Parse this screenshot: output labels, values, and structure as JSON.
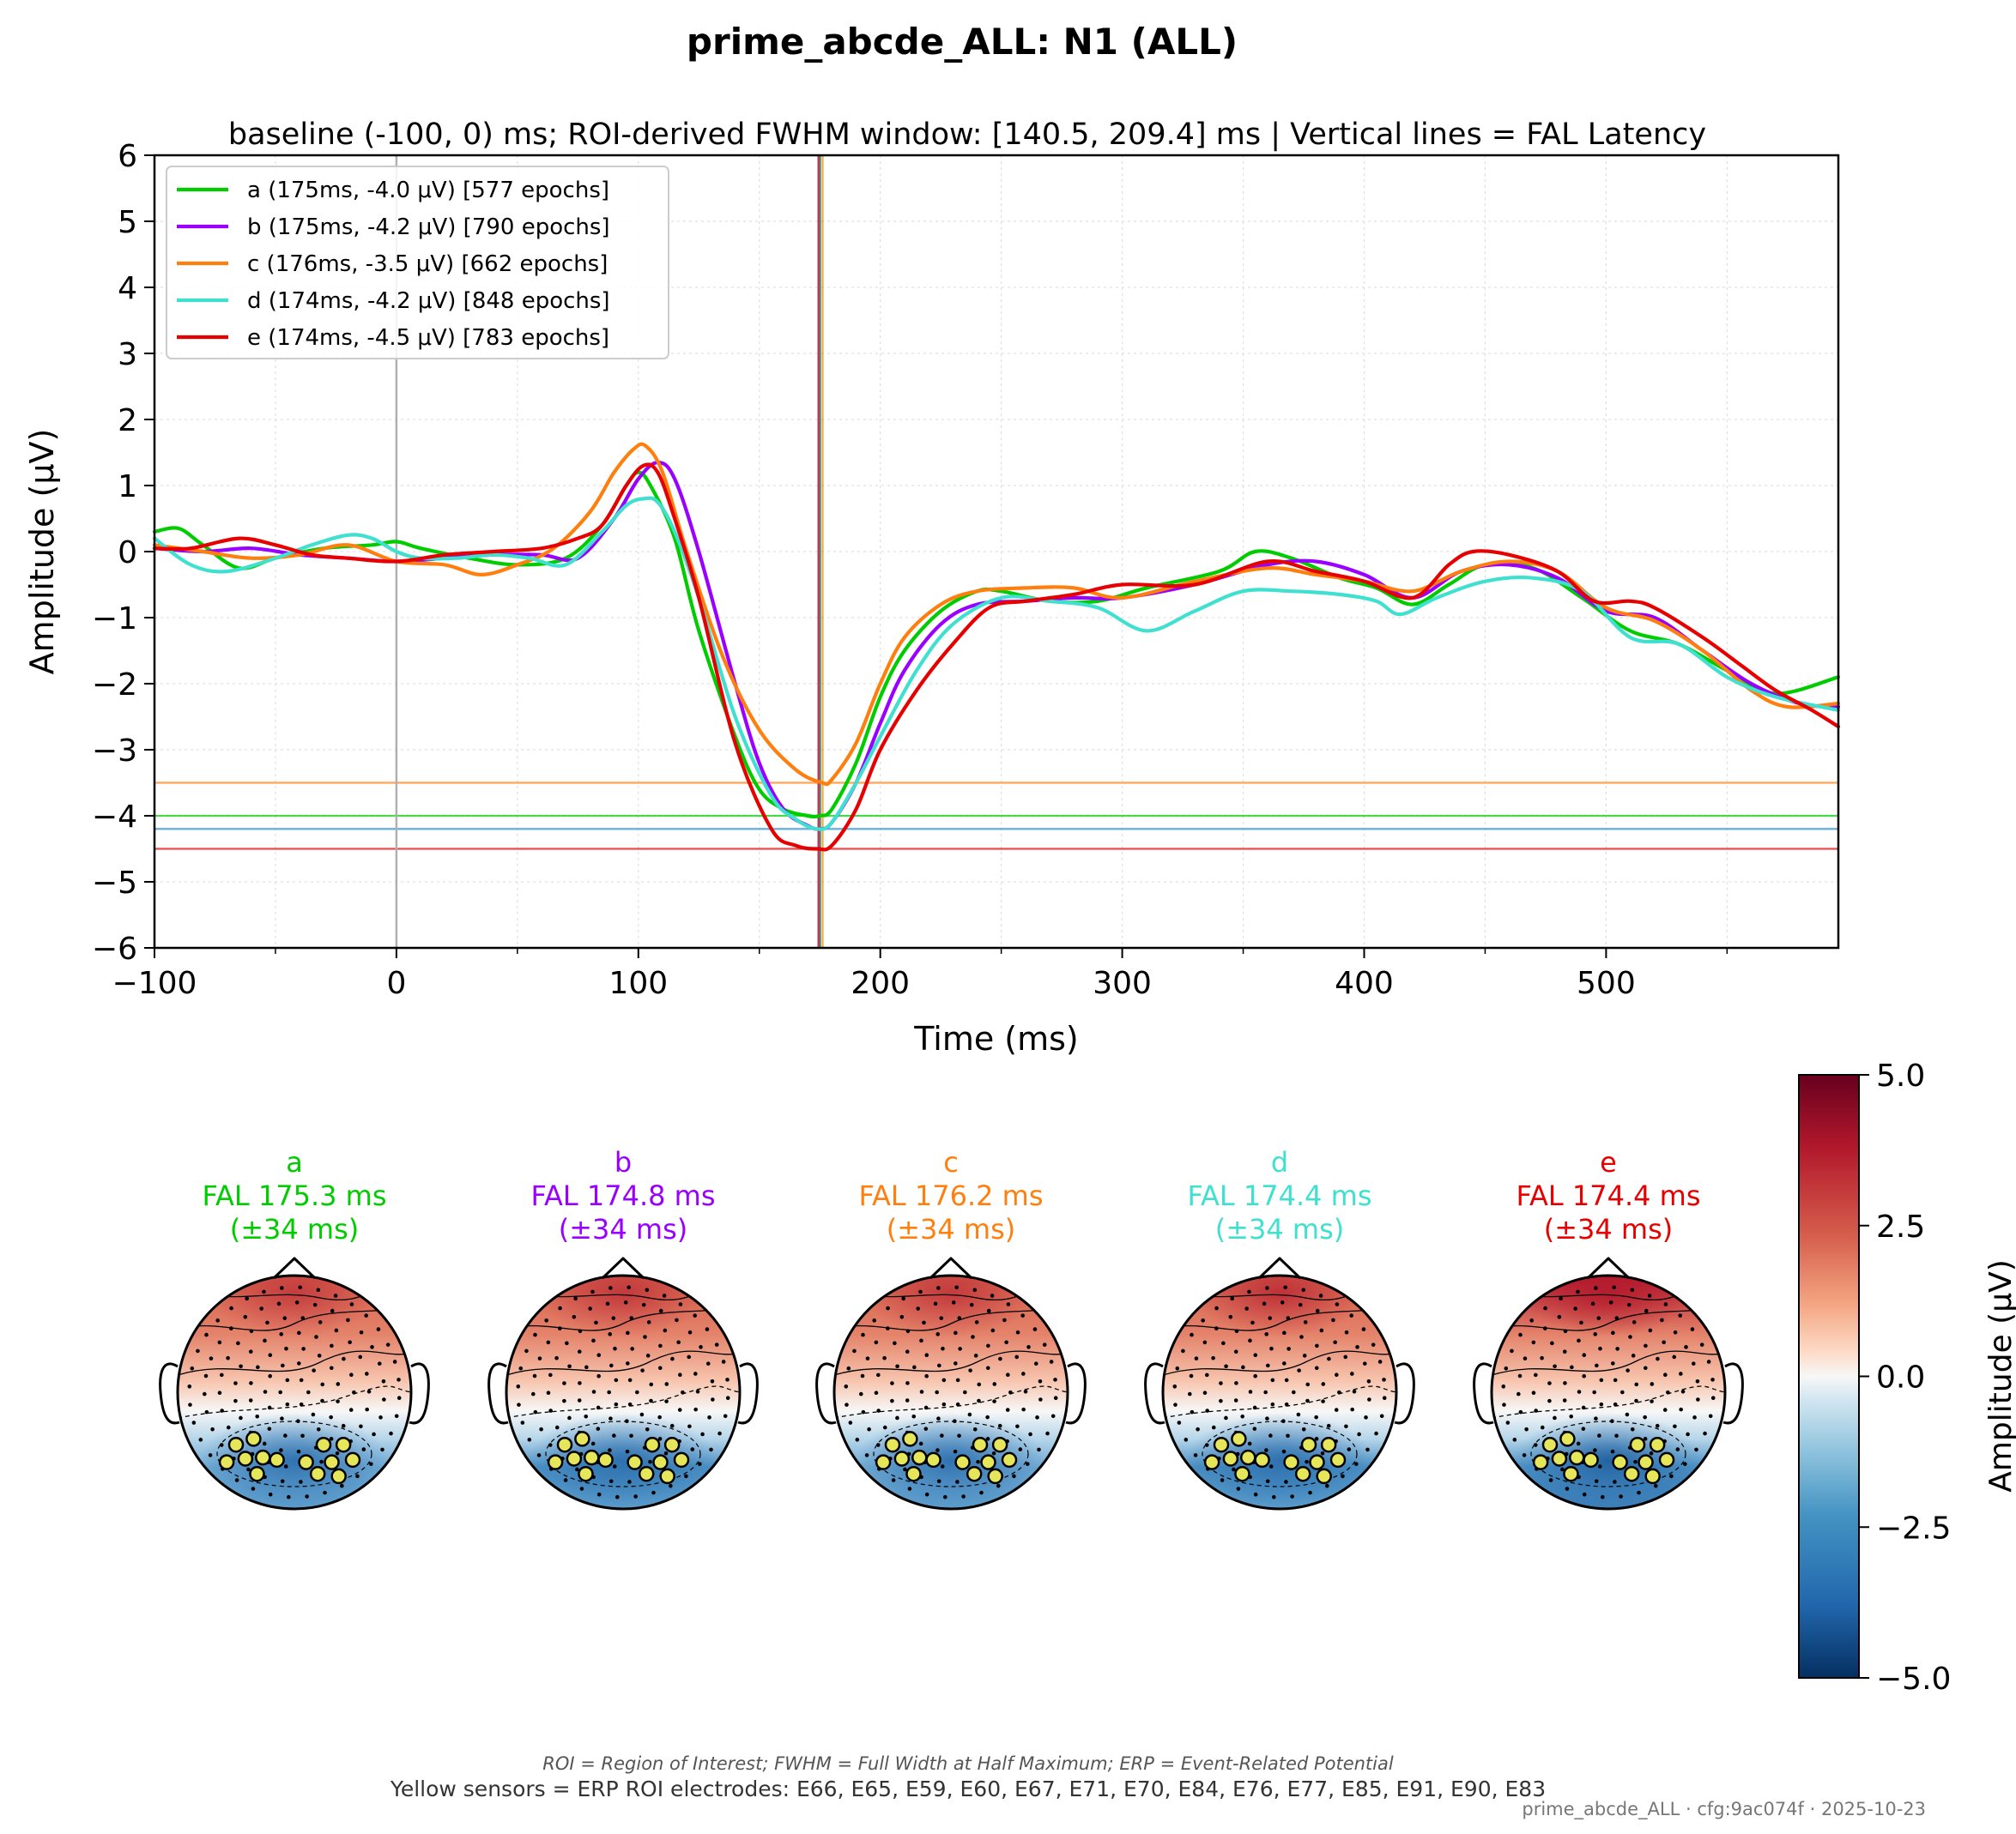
{
  "figure": {
    "title": "prime_abcde_ALL: N1 (ALL)",
    "subtitle": "baseline (-100, 0) ms; ROI-derived FWHM window: [140.5, 209.4] ms | Vertical lines = FAL Latency",
    "footnote_abbrev": "ROI = Region of Interest; FWHM = Full Width at Half Maximum; ERP = Event-Related Potential",
    "footnote_sensors": "Yellow sensors = ERP ROI electrodes: E66, E65, E59, E60, E67, E71, E70, E84, E76, E77, E85, E91, E90, E83",
    "footnote_meta": "prime_abcde_ALL · cfg:9ac074f · 2025-10-23"
  },
  "colors": {
    "a": "#00cc00",
    "b": "#9900ff",
    "c": "#ff7f0e",
    "d": "#40e0d0",
    "e": "#e60000",
    "zero_line": "#b0b0b0",
    "grid": "#e0e0e0",
    "roi_sensor": "#e6e65a"
  },
  "chart_data": [
    {
      "type": "line",
      "xlabel": "Time (ms)",
      "ylabel": "Amplitude (μV)",
      "xlim": [
        -100,
        596
      ],
      "ylim": [
        -6,
        6
      ],
      "xticks": [
        "−100",
        "0",
        "100",
        "200",
        "300",
        "400",
        "500"
      ],
      "xtick_values": [
        -100,
        0,
        100,
        200,
        300,
        400,
        500
      ],
      "yticks": [
        "6",
        "5",
        "4",
        "3",
        "2",
        "1",
        "0",
        "−1",
        "−2",
        "−3",
        "−4",
        "−5",
        "−6"
      ],
      "ytick_values": [
        6,
        5,
        4,
        3,
        2,
        1,
        0,
        -1,
        -2,
        -3,
        -4,
        -5,
        -6
      ],
      "grid": true,
      "legend_position": "top-left",
      "vertical_markers_ms": [
        0,
        174.4,
        174.8,
        175.3,
        176.2
      ],
      "series": [
        {
          "name": "a (175ms, -4.0 μV) [577 epochs]",
          "key": "a",
          "peak_latency_ms": 175,
          "peak_amplitude_uv": -4.0,
          "epochs": 577,
          "x": [
            -100,
            -90,
            -80,
            -65,
            -50,
            -30,
            -10,
            0,
            10,
            30,
            50,
            70,
            85,
            95,
            100,
            105,
            115,
            125,
            140,
            150,
            160,
            170,
            175,
            180,
            190,
            200,
            210,
            225,
            240,
            250,
            270,
            290,
            310,
            340,
            355,
            370,
            390,
            405,
            420,
            435,
            450,
            470,
            490,
            510,
            530,
            550,
            570,
            596
          ],
          "y": [
            0.3,
            0.35,
            0.1,
            -0.25,
            -0.1,
            0.05,
            0.1,
            0.15,
            0.05,
            -0.1,
            -0.2,
            -0.1,
            0.4,
            1.0,
            1.2,
            1.0,
            0.2,
            -1.2,
            -2.8,
            -3.6,
            -3.9,
            -4.0,
            -4.0,
            -3.9,
            -3.2,
            -2.2,
            -1.5,
            -0.9,
            -0.6,
            -0.6,
            -0.75,
            -0.75,
            -0.55,
            -0.3,
            0.0,
            -0.1,
            -0.4,
            -0.55,
            -0.8,
            -0.5,
            -0.2,
            -0.25,
            -0.7,
            -1.2,
            -1.4,
            -1.8,
            -2.15,
            -1.9
          ]
        },
        {
          "name": "b (175ms, -4.2 μV) [790 epochs]",
          "key": "b",
          "peak_latency_ms": 175,
          "peak_amplitude_uv": -4.2,
          "epochs": 790,
          "x": [
            -100,
            -80,
            -60,
            -40,
            -20,
            0,
            20,
            40,
            60,
            75,
            90,
            100,
            108,
            115,
            125,
            140,
            150,
            160,
            170,
            175,
            180,
            190,
            200,
            210,
            225,
            240,
            260,
            280,
            300,
            330,
            360,
            380,
            400,
            420,
            440,
            460,
            480,
            500,
            520,
            540,
            560,
            580,
            596
          ],
          "y": [
            0.05,
            0.0,
            0.05,
            -0.05,
            -0.1,
            -0.15,
            -0.1,
            -0.05,
            -0.05,
            -0.1,
            0.5,
            1.1,
            1.35,
            1.1,
            0.0,
            -2.0,
            -3.2,
            -3.9,
            -4.15,
            -4.2,
            -4.1,
            -3.5,
            -2.6,
            -1.8,
            -1.1,
            -0.8,
            -0.75,
            -0.7,
            -0.7,
            -0.5,
            -0.2,
            -0.15,
            -0.35,
            -0.7,
            -0.3,
            -0.2,
            -0.4,
            -0.9,
            -1.0,
            -1.5,
            -2.0,
            -2.3,
            -2.35
          ]
        },
        {
          "name": "c (176ms, -3.5 μV) [662 epochs]",
          "key": "c",
          "peak_latency_ms": 176,
          "peak_amplitude_uv": -3.5,
          "epochs": 662,
          "x": [
            -100,
            -80,
            -60,
            -40,
            -20,
            0,
            20,
            35,
            50,
            65,
            80,
            90,
            98,
            103,
            110,
            120,
            135,
            150,
            165,
            176,
            180,
            190,
            200,
            210,
            225,
            240,
            260,
            280,
            300,
            330,
            360,
            380,
            400,
            420,
            440,
            460,
            480,
            500,
            520,
            540,
            560,
            575,
            596
          ],
          "y": [
            0.1,
            0.0,
            -0.1,
            -0.05,
            0.1,
            -0.15,
            -0.2,
            -0.35,
            -0.2,
            0.05,
            0.6,
            1.2,
            1.55,
            1.6,
            1.2,
            0.0,
            -1.6,
            -2.7,
            -3.3,
            -3.5,
            -3.45,
            -2.9,
            -2.0,
            -1.3,
            -0.8,
            -0.6,
            -0.55,
            -0.55,
            -0.7,
            -0.45,
            -0.25,
            -0.35,
            -0.45,
            -0.6,
            -0.3,
            -0.15,
            -0.3,
            -0.85,
            -1.05,
            -1.5,
            -2.1,
            -2.35,
            -2.3
          ]
        },
        {
          "name": "d (174ms, -4.2 μV) [848 epochs]",
          "key": "d",
          "peak_latency_ms": 174,
          "peak_amplitude_uv": -4.2,
          "epochs": 848,
          "x": [
            -100,
            -85,
            -70,
            -50,
            -35,
            -20,
            -10,
            0,
            10,
            25,
            40,
            55,
            70,
            85,
            95,
            102,
            108,
            115,
            125,
            140,
            155,
            165,
            174,
            180,
            190,
            200,
            215,
            230,
            250,
            270,
            290,
            310,
            330,
            350,
            370,
            390,
            405,
            415,
            430,
            450,
            470,
            490,
            510,
            530,
            550,
            570,
            596
          ],
          "y": [
            0.2,
            -0.2,
            -0.3,
            -0.1,
            0.1,
            0.25,
            0.2,
            0.0,
            -0.1,
            -0.1,
            -0.05,
            -0.1,
            -0.2,
            0.3,
            0.7,
            0.8,
            0.75,
            0.3,
            -0.7,
            -2.5,
            -3.7,
            -4.05,
            -4.2,
            -4.1,
            -3.5,
            -2.8,
            -1.8,
            -1.1,
            -0.7,
            -0.75,
            -0.85,
            -1.2,
            -0.9,
            -0.6,
            -0.6,
            -0.65,
            -0.75,
            -0.95,
            -0.7,
            -0.45,
            -0.4,
            -0.6,
            -1.3,
            -1.4,
            -1.9,
            -2.2,
            -2.4
          ]
        },
        {
          "name": "e (174ms, -4.5 μV) [783 epochs]",
          "key": "e",
          "peak_latency_ms": 174,
          "peak_amplitude_uv": -4.5,
          "epochs": 783,
          "x": [
            -100,
            -85,
            -65,
            -50,
            -35,
            -20,
            0,
            20,
            40,
            60,
            75,
            85,
            95,
            102,
            108,
            115,
            125,
            140,
            155,
            165,
            174,
            180,
            190,
            200,
            215,
            230,
            245,
            260,
            280,
            300,
            330,
            360,
            380,
            400,
            420,
            435,
            445,
            460,
            480,
            495,
            510,
            520,
            540,
            555,
            570,
            585,
            596
          ],
          "y": [
            0.05,
            0.05,
            0.2,
            0.1,
            -0.05,
            -0.1,
            -0.15,
            -0.05,
            0.0,
            0.05,
            0.2,
            0.4,
            1.0,
            1.3,
            1.2,
            0.5,
            -0.7,
            -2.9,
            -4.2,
            -4.45,
            -4.5,
            -4.45,
            -3.9,
            -3.0,
            -2.1,
            -1.4,
            -0.85,
            -0.75,
            -0.65,
            -0.5,
            -0.5,
            -0.15,
            -0.3,
            -0.45,
            -0.7,
            -0.2,
            0.0,
            -0.05,
            -0.3,
            -0.75,
            -0.75,
            -0.85,
            -1.3,
            -1.7,
            -2.1,
            -2.4,
            -2.65
          ]
        }
      ]
    },
    {
      "type": "heatmap",
      "description_key": "topomaps",
      "colorbar_label": "Amplitude (μV)",
      "colorbar_range": [
        -5.0,
        5.0
      ],
      "colorbar_ticks": [
        "5.0",
        "2.5",
        "0.0",
        "−2.5",
        "−5.0"
      ],
      "colorbar_tick_values": [
        5.0,
        2.5,
        0.0,
        -2.5,
        -5.0
      ],
      "topomaps": [
        {
          "key": "a",
          "label": "a",
          "fal": "FAL 175.3 ms",
          "window": "(±34 ms)",
          "frontal_level": 0.55,
          "posterior_level": 0.5
        },
        {
          "key": "b",
          "label": "b",
          "fal": "FAL 174.8 ms",
          "window": "(±34 ms)",
          "frontal_level": 0.6,
          "posterior_level": 0.7
        },
        {
          "key": "c",
          "label": "c",
          "fal": "FAL 176.2 ms",
          "window": "(±34 ms)",
          "frontal_level": 0.58,
          "posterior_level": 0.6
        },
        {
          "key": "d",
          "label": "d",
          "fal": "FAL 174.4 ms",
          "window": "(±34 ms)",
          "frontal_level": 0.7,
          "posterior_level": 0.7
        },
        {
          "key": "e",
          "label": "e",
          "fal": "FAL 174.4 ms",
          "window": "(±34 ms)",
          "frontal_level": 0.85,
          "posterior_level": 0.8
        }
      ]
    }
  ]
}
